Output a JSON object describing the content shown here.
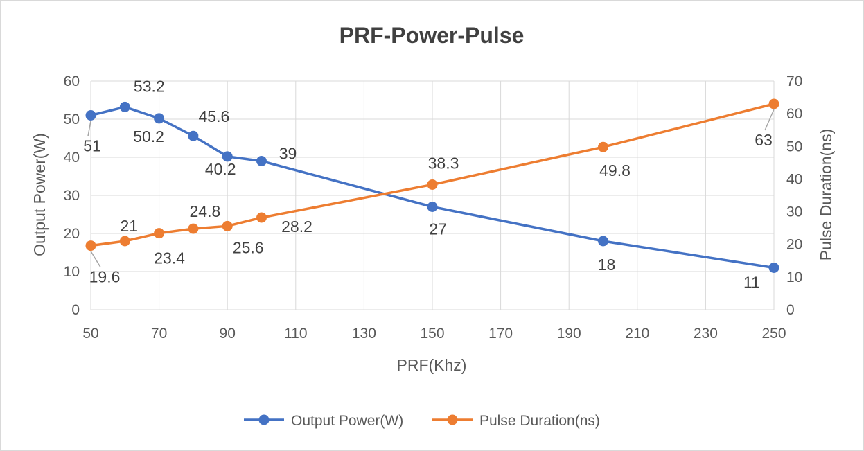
{
  "chart_data": {
    "type": "line",
    "title": "PRF-Power-Pulse",
    "xlabel": "PRF(Khz)",
    "ylabel_left": "Output Power(W)",
    "ylabel_right": "Pulse Duration(ns)",
    "x": [
      50,
      60,
      70,
      80,
      90,
      100,
      150,
      200,
      250
    ],
    "xlim": [
      50,
      250
    ],
    "x_ticks": [
      "50",
      "70",
      "90",
      "110",
      "130",
      "150",
      "170",
      "190",
      "210",
      "230",
      "250"
    ],
    "ylim_left": [
      0,
      60
    ],
    "y_ticks_left": [
      "0",
      "10",
      "20",
      "30",
      "40",
      "50",
      "60"
    ],
    "ylim_right": [
      0,
      70
    ],
    "y_ticks_right": [
      "0",
      "10",
      "20",
      "30",
      "40",
      "50",
      "60",
      "70"
    ],
    "grid": true,
    "legend_position": "bottom",
    "series": [
      {
        "name": "Output Power(W)",
        "axis": "left",
        "color": "#4472c4",
        "values": [
          51,
          53.2,
          50.2,
          45.6,
          40.2,
          39,
          27,
          18,
          11
        ],
        "labels": [
          "51",
          "53.2",
          "50.2",
          "45.6",
          "40.2",
          "39",
          "27",
          "18",
          "11"
        ]
      },
      {
        "name": "Pulse Duration(ns)",
        "axis": "right",
        "color": "#ed7d31",
        "values": [
          19.6,
          21,
          23.4,
          24.8,
          25.6,
          28.2,
          38.3,
          49.8,
          63
        ],
        "labels": [
          "19.6",
          "21",
          "23.4",
          "24.8",
          "25.6",
          "28.2",
          "38.3",
          "49.8",
          "63"
        ]
      }
    ]
  }
}
